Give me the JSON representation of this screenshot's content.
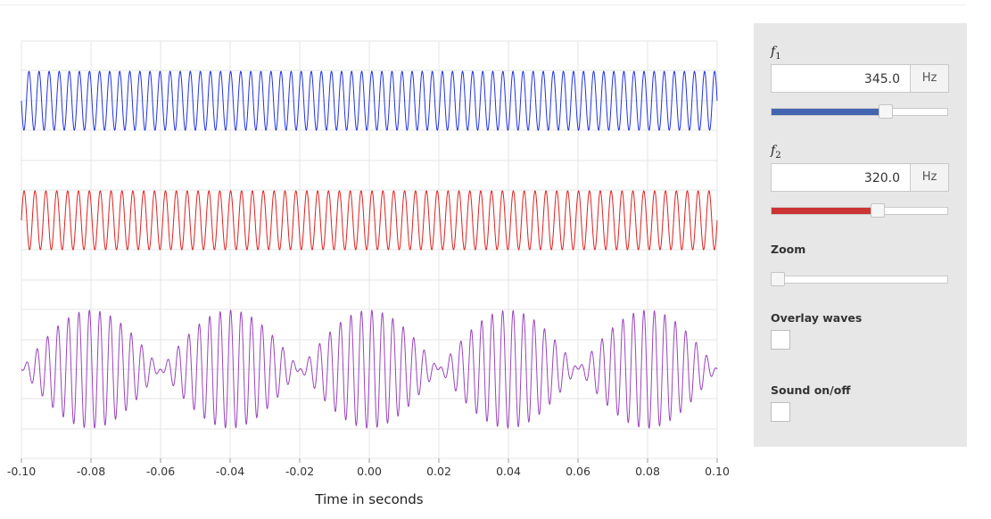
{
  "chart_data": [
    {
      "type": "line",
      "series": [
        {
          "frequency_hz": 345.0,
          "color": "#2233dd"
        },
        {
          "frequency_hz": 320.0,
          "color": "#dd2222"
        },
        {
          "color": "#9944bb"
        }
      ],
      "x_ticks": [
        "-0.10",
        "-0.08",
        "-0.06",
        "-0.04",
        "-0.02",
        "0.00",
        "0.02",
        "0.04",
        "0.06",
        "0.08",
        "0.10"
      ],
      "xlim": [
        -0.1,
        0.1
      ],
      "xlabel": "Time in seconds",
      "grid": true
    }
  ],
  "controls": {
    "f1": {
      "label_base": "f",
      "label_sub": "1",
      "value": "345.0",
      "unit": "Hz",
      "slider_fraction": 0.66,
      "color": "#4466b0"
    },
    "f2": {
      "label_base": "f",
      "label_sub": "2",
      "value": "320.0",
      "unit": "Hz",
      "slider_fraction": 0.61,
      "color": "#cc3333"
    },
    "zoom": {
      "label": "Zoom",
      "slider_fraction": 0.0
    },
    "overlay": {
      "label": "Overlay waves",
      "checked": false
    },
    "sound": {
      "label": "Sound on/off",
      "checked": false
    }
  }
}
